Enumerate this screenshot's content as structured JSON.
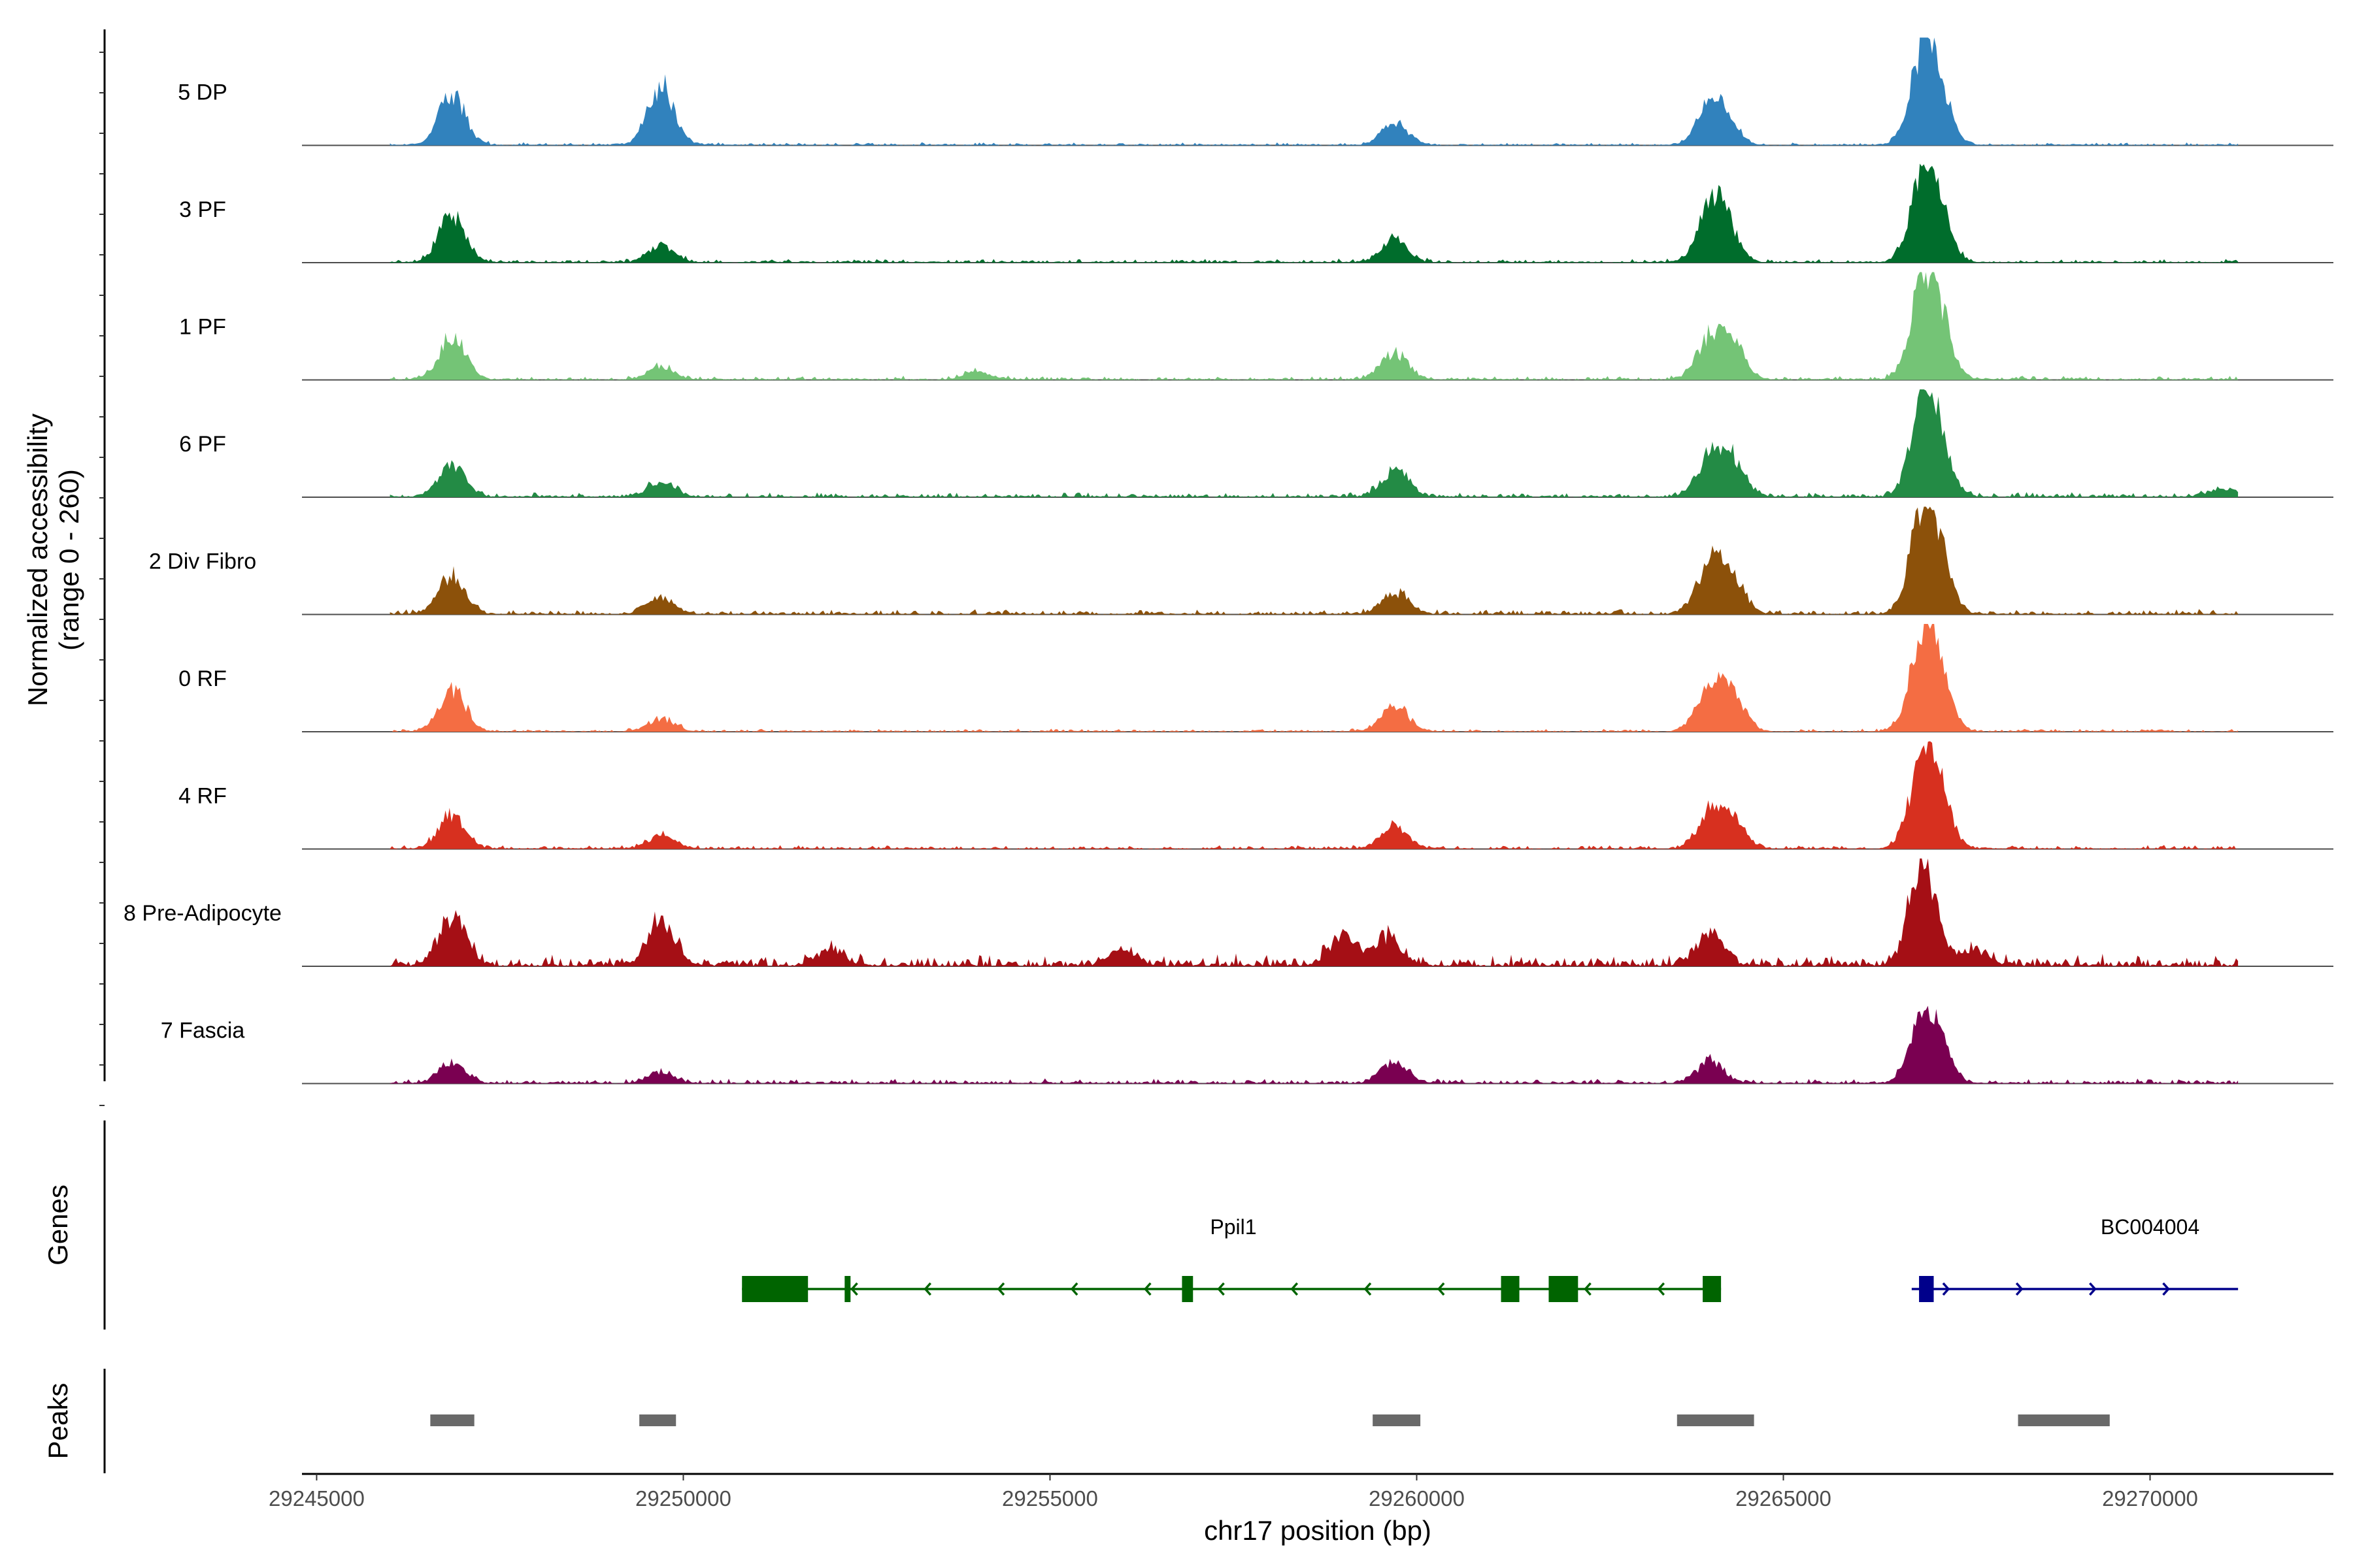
{
  "chart_data": {
    "type": "area",
    "ylabel_line1": "Normalized accessibility",
    "ylabel_line2": "(range 0 - 260)",
    "y_range": [
      0,
      260
    ],
    "xlabel": "chr17 position (bp)",
    "x_range": [
      29244800,
      29272500
    ],
    "x_ticks": [
      29245000,
      29250000,
      29255000,
      29260000,
      29265000,
      29270000
    ],
    "x_tick_labels": [
      "29245000",
      "29250000",
      "29255000",
      "29260000",
      "29265000",
      "29270000"
    ],
    "tracks": [
      {
        "name": "5 DP",
        "color": "#3182bd",
        "peaks": [
          [
            29246850,
            0.45
          ],
          [
            29249700,
            0.55
          ],
          [
            29259700,
            0.2
          ],
          [
            29264000,
            0.3
          ],
          [
            29264200,
            0.22
          ],
          [
            29266900,
            0.75
          ],
          [
            29267100,
            0.45
          ]
        ],
        "noise": 0.03
      },
      {
        "name": "3 PF",
        "color": "#006d2c",
        "peaks": [
          [
            29246850,
            0.45
          ],
          [
            29249700,
            0.15
          ],
          [
            29259700,
            0.2
          ],
          [
            29264000,
            0.4
          ],
          [
            29264200,
            0.3
          ],
          [
            29266900,
            0.65
          ],
          [
            29267100,
            0.4
          ]
        ],
        "noise": 0.04
      },
      {
        "name": "1 PF",
        "color": "#74c476",
        "peaks": [
          [
            29246850,
            0.4
          ],
          [
            29249700,
            0.12
          ],
          [
            29254000,
            0.08
          ],
          [
            29259700,
            0.25
          ],
          [
            29264000,
            0.35
          ],
          [
            29264300,
            0.3
          ],
          [
            29266900,
            0.75
          ],
          [
            29267100,
            0.5
          ]
        ],
        "noise": 0.04
      },
      {
        "name": "6 PF",
        "color": "#238b45",
        "peaks": [
          [
            29246850,
            0.3
          ],
          [
            29249700,
            0.15
          ],
          [
            29259700,
            0.25
          ],
          [
            29264000,
            0.35
          ],
          [
            29264300,
            0.3
          ],
          [
            29266900,
            0.7
          ],
          [
            29267100,
            0.45
          ],
          [
            29271000,
            0.08
          ]
        ],
        "noise": 0.05
      },
      {
        "name": "2 Div Fibro",
        "color": "#8c510a",
        "peaks": [
          [
            29246850,
            0.35
          ],
          [
            29249700,
            0.15
          ],
          [
            29259700,
            0.2
          ],
          [
            29264000,
            0.45
          ],
          [
            29264300,
            0.3
          ],
          [
            29266900,
            0.8
          ],
          [
            29267100,
            0.45
          ]
        ],
        "noise": 0.05
      },
      {
        "name": "0 RF",
        "color": "#f46d43",
        "peaks": [
          [
            29246850,
            0.4
          ],
          [
            29249700,
            0.12
          ],
          [
            29259700,
            0.25
          ],
          [
            29264000,
            0.4
          ],
          [
            29264300,
            0.3
          ],
          [
            29266900,
            0.75
          ],
          [
            29267100,
            0.45
          ]
        ],
        "noise": 0.03
      },
      {
        "name": "4 RF",
        "color": "#d7301f",
        "peaks": [
          [
            29246850,
            0.3
          ],
          [
            29249700,
            0.12
          ],
          [
            29259700,
            0.2
          ],
          [
            29264000,
            0.3
          ],
          [
            29264300,
            0.25
          ],
          [
            29266900,
            0.7
          ],
          [
            29267100,
            0.45
          ]
        ],
        "noise": 0.04
      },
      {
        "name": "8 Pre-Adipocyte",
        "color": "#a50f15",
        "peaks": [
          [
            29246850,
            0.45
          ],
          [
            29249700,
            0.4
          ],
          [
            29252000,
            0.15
          ],
          [
            29256000,
            0.15
          ],
          [
            29259000,
            0.3
          ],
          [
            29259600,
            0.25
          ],
          [
            29264000,
            0.3
          ],
          [
            29266900,
            0.95
          ],
          [
            29267600,
            0.15
          ]
        ],
        "noise": 0.12
      },
      {
        "name": "7 Fascia",
        "color": "#7a0051",
        "peaks": [
          [
            29246850,
            0.2
          ],
          [
            29249700,
            0.1
          ],
          [
            29259700,
            0.2
          ],
          [
            29264000,
            0.2
          ],
          [
            29266900,
            0.55
          ],
          [
            29267100,
            0.3
          ]
        ],
        "noise": 0.05
      }
    ],
    "genes_label": "Genes",
    "genes": [
      {
        "name": "Ppil1",
        "strand": "-",
        "color": "#006400",
        "start": 29250800,
        "end": 29264150,
        "label_x": 29257500,
        "exons": [
          [
            29250800,
            29251700
          ],
          [
            29252200,
            29252280
          ],
          [
            29256800,
            29256950
          ],
          [
            29261150,
            29261400
          ],
          [
            29261800,
            29262200
          ],
          [
            29263900,
            29264150
          ]
        ]
      },
      {
        "name": "BC004004",
        "strand": "+",
        "color": "#00008b",
        "start": 29266750,
        "end": 29271200,
        "label_x": 29270000,
        "exons": [
          [
            29266850,
            29267050
          ]
        ]
      }
    ],
    "peaks_label": "Peaks",
    "peak_regions": [
      [
        29246550,
        29247150
      ],
      [
        29249400,
        29249900
      ],
      [
        29259400,
        29260050
      ],
      [
        29263550,
        29264600
      ],
      [
        29268200,
        29269450
      ]
    ]
  }
}
